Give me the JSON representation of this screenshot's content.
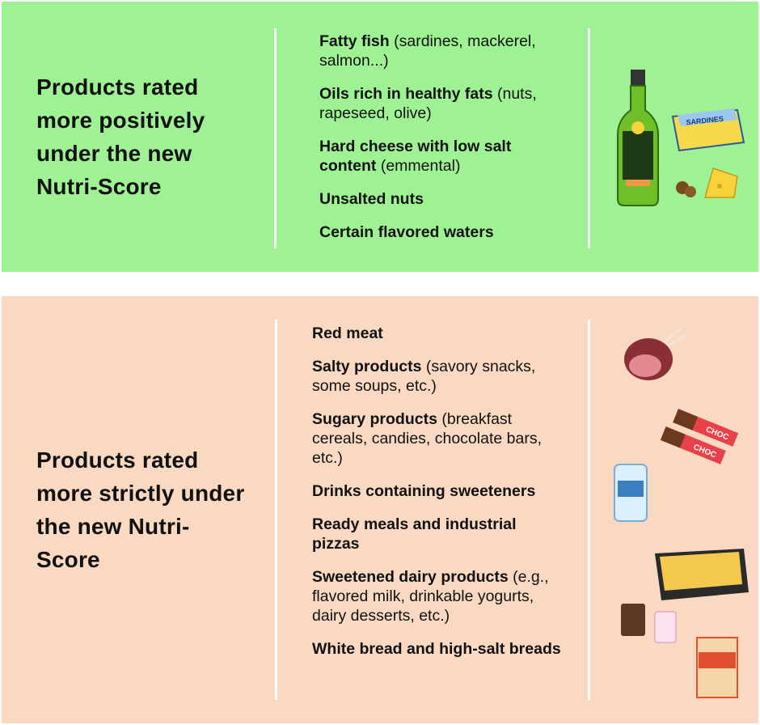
{
  "sections": [
    {
      "heading": "Products rated more positively under the new Nutri-Score",
      "items": [
        {
          "bold": "Fatty fish",
          "detail": "(sardines, mackerel, salmon...)"
        },
        {
          "bold": "Oils rich in healthy fats",
          "detail": "(nuts, rapeseed, olive)"
        },
        {
          "bold": "Hard cheese with low salt content",
          "detail": "(emmental)"
        },
        {
          "bold": "Unsalted nuts"
        },
        {
          "bold": "Certain flavored waters"
        }
      ],
      "icon_labels": [
        "SARDINES"
      ]
    },
    {
      "heading": "Products rated more strictly under the new Nutri-Score",
      "items": [
        {
          "bold": "Red meat"
        },
        {
          "bold": "Salty products",
          "detail": "(savory snacks, some soups, etc.)"
        },
        {
          "bold": "Sugary products",
          "detail": "(breakfast cereals, candies, chocolate bars, etc.)"
        },
        {
          "bold": "Drinks containing sweeteners"
        },
        {
          "bold": "Ready meals and industrial pizzas"
        },
        {
          "bold": "Sweetened dairy products",
          "detail": "(e.g., flavored milk, drinkable yogurts, dairy desserts, etc.)"
        },
        {
          "bold": "White bread and high-salt breads"
        }
      ],
      "icon_labels": [
        "CHOC",
        "CHOC"
      ]
    }
  ]
}
